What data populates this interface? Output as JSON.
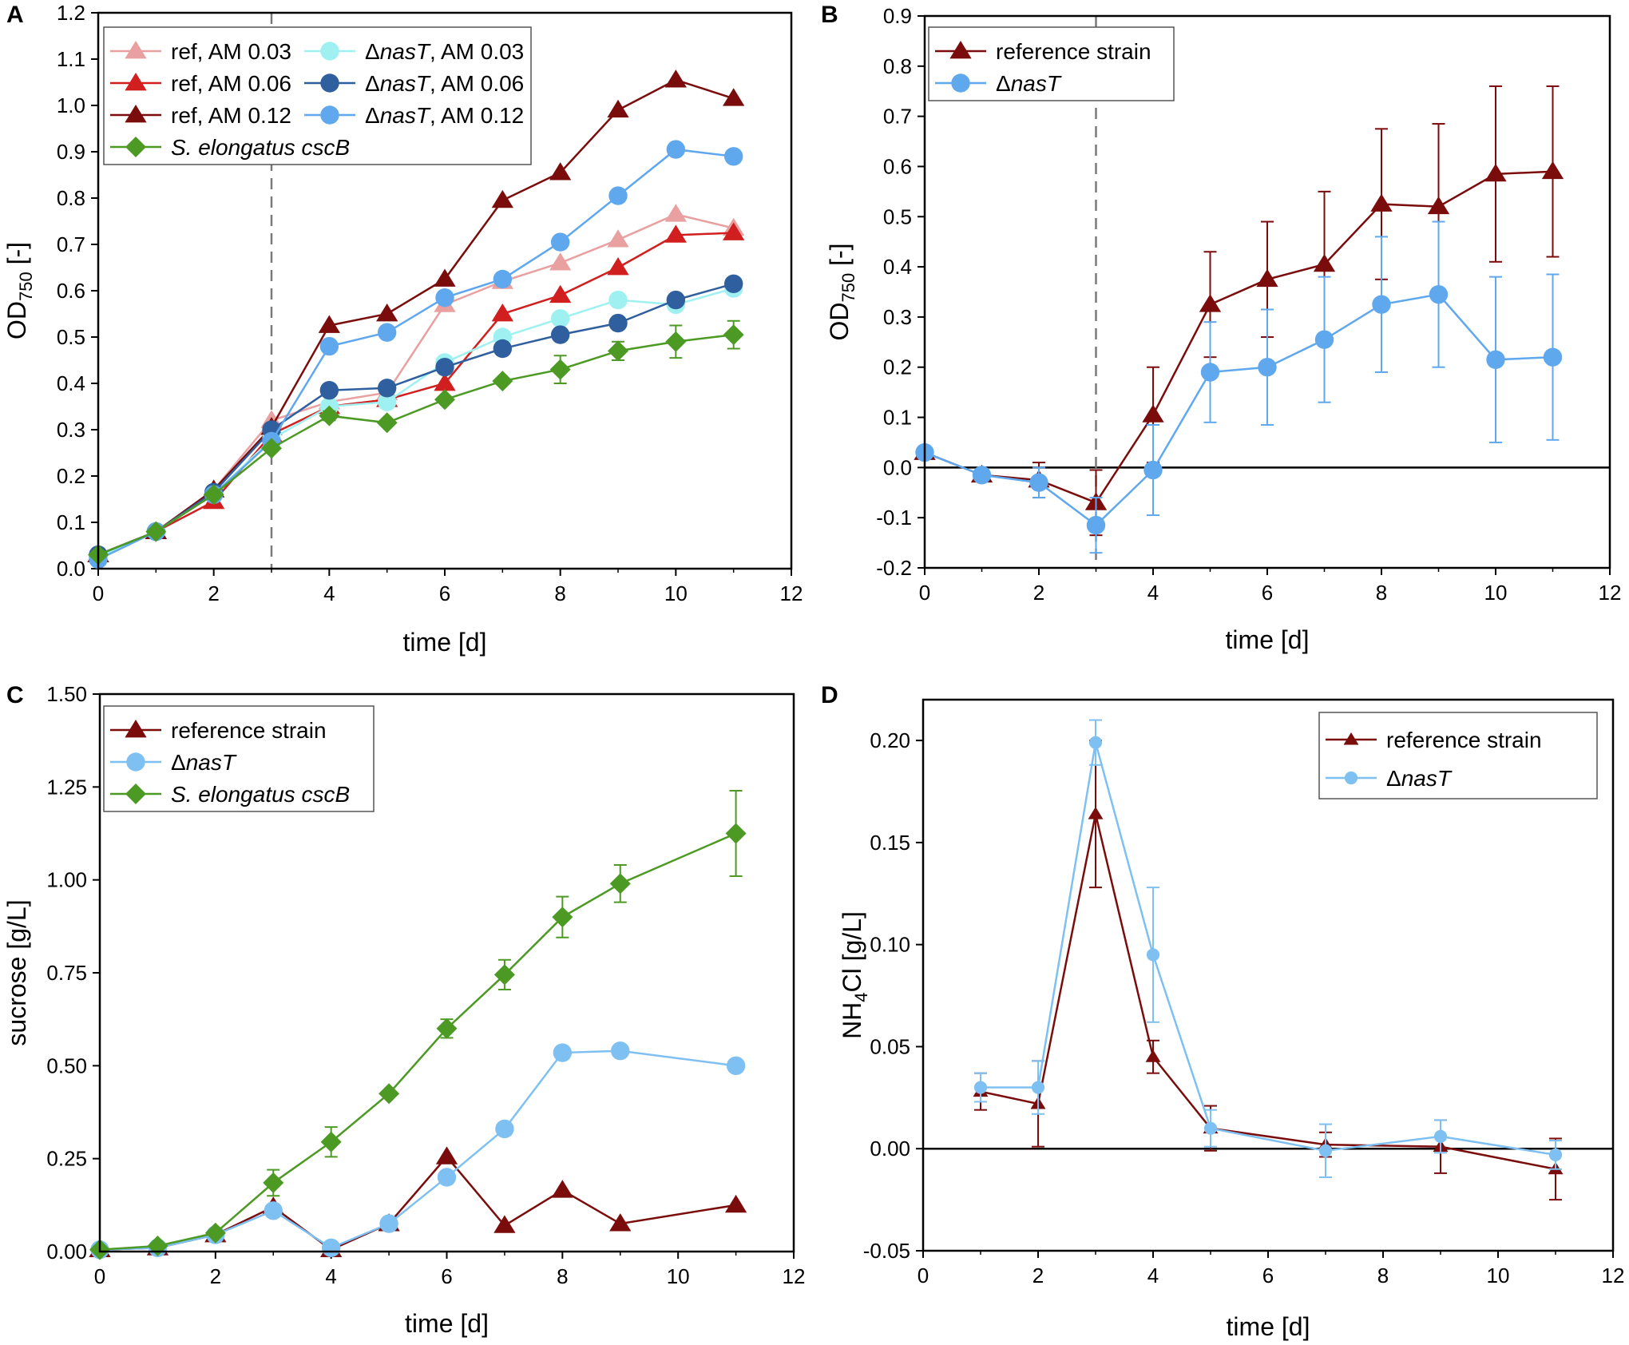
{
  "chart_data": [
    {
      "panel": "A",
      "type": "line",
      "xlabel": "time [d]",
      "ylabel": {
        "main": "OD",
        "sub": "750",
        "rest": " [-]"
      },
      "xlim": [
        0,
        12
      ],
      "ylim": [
        0,
        1.2
      ],
      "xticks": [
        "0",
        "2",
        "4",
        "6",
        "8",
        "10",
        "12"
      ],
      "yticks": [
        "0.0",
        "0.1",
        "0.2",
        "0.3",
        "0.4",
        "0.5",
        "0.6",
        "0.7",
        "0.8",
        "0.9",
        "1.0",
        "1.1",
        "1.2"
      ],
      "vline_x": 3,
      "legend_position": "top-left",
      "series": [
        {
          "name": "ref, AM 0.03",
          "color": "#e8a0a0",
          "marker": "triangle",
          "x": [
            0,
            1,
            2,
            3,
            4,
            5,
            6,
            7,
            8,
            9,
            10,
            11
          ],
          "y": [
            0.03,
            0.08,
            0.17,
            0.32,
            0.36,
            0.38,
            0.57,
            0.62,
            0.66,
            0.71,
            0.765,
            0.735
          ]
        },
        {
          "name": "ref, AM 0.06",
          "color": "#d11f1f",
          "marker": "triangle",
          "x": [
            0,
            1,
            2,
            3,
            4,
            5,
            6,
            7,
            8,
            9,
            10,
            11
          ],
          "y": [
            0.03,
            0.08,
            0.145,
            0.29,
            0.35,
            0.365,
            0.4,
            0.55,
            0.59,
            0.65,
            0.72,
            0.725
          ]
        },
        {
          "name": "ref, AM 0.12",
          "color": "#7a0c0c",
          "marker": "triangle",
          "x": [
            0,
            1,
            2,
            3,
            4,
            5,
            6,
            7,
            8,
            9,
            10,
            11
          ],
          "y": [
            0.03,
            0.08,
            0.17,
            0.305,
            0.525,
            0.55,
            0.625,
            0.795,
            0.855,
            0.99,
            1.055,
            1.015
          ]
        },
        {
          "name": "ΔnasT, AM 0.03",
          "italic": "nasT",
          "color": "#9ff1f1",
          "marker": "circle",
          "x": [
            0,
            1,
            2,
            3,
            4,
            5,
            6,
            7,
            8,
            9,
            10,
            11
          ],
          "y": [
            0.025,
            0.08,
            0.16,
            0.28,
            0.35,
            0.36,
            0.445,
            0.5,
            0.54,
            0.58,
            0.57,
            0.605
          ]
        },
        {
          "name": "ΔnasT, AM 0.06",
          "italic": "nasT",
          "color": "#2f5f9e",
          "marker": "circle",
          "x": [
            0,
            1,
            2,
            3,
            4,
            5,
            6,
            7,
            8,
            9,
            10,
            11
          ],
          "y": [
            0.03,
            0.08,
            0.165,
            0.3,
            0.385,
            0.39,
            0.435,
            0.475,
            0.505,
            0.53,
            0.58,
            0.615
          ]
        },
        {
          "name": "ΔnasT, AM 0.12",
          "italic": "nasT",
          "color": "#5fa8ee",
          "marker": "circle",
          "x": [
            0,
            1,
            2,
            3,
            4,
            5,
            6,
            7,
            8,
            9,
            10,
            11
          ],
          "y": [
            0.02,
            0.08,
            0.16,
            0.275,
            0.48,
            0.51,
            0.585,
            0.625,
            0.705,
            0.805,
            0.905,
            0.89
          ]
        },
        {
          "name": "S. elongatus cscB",
          "italic_all": true,
          "color": "#4c9a24",
          "marker": "diamond",
          "x": [
            0,
            1,
            2,
            3,
            4,
            5,
            6,
            7,
            8,
            9,
            10,
            11
          ],
          "y": [
            0.03,
            0.08,
            0.16,
            0.26,
            0.33,
            0.315,
            0.365,
            0.405,
            0.43,
            0.47,
            0.49,
            0.505
          ],
          "err": [
            0,
            0,
            0,
            0,
            0.01,
            0,
            0,
            0,
            0.03,
            0.02,
            0.035,
            0.03
          ]
        }
      ]
    },
    {
      "panel": "B",
      "type": "line",
      "xlabel": "time [d]",
      "ylabel": {
        "main": "OD",
        "sub": "750",
        "rest": " [-]"
      },
      "xlim": [
        0,
        12
      ],
      "ylim": [
        -0.2,
        0.9
      ],
      "xticks": [
        "0",
        "2",
        "4",
        "6",
        "8",
        "10",
        "12"
      ],
      "yticks": [
        "-0.2",
        "-0.1",
        "0.0",
        "0.1",
        "0.2",
        "0.3",
        "0.4",
        "0.5",
        "0.6",
        "0.7",
        "0.8",
        "0.9"
      ],
      "vline_x": 3,
      "hline_y": 0,
      "legend_position": "top-left",
      "series": [
        {
          "name": "reference strain",
          "color": "#7a0c0c",
          "marker": "triangle",
          "x": [
            0,
            1,
            2,
            3,
            4,
            5,
            6,
            7,
            8,
            9,
            10,
            11
          ],
          "y": [
            0.03,
            -0.015,
            -0.025,
            -0.07,
            0.105,
            0.325,
            0.375,
            0.405,
            0.525,
            0.52,
            0.585,
            0.59
          ],
          "err": [
            0,
            0.005,
            0.035,
            0.065,
            0.095,
            0.105,
            0.115,
            0.145,
            0.15,
            0.165,
            0.175,
            0.17
          ]
        },
        {
          "name": "ΔnasT",
          "italic": "nasT",
          "color": "#5fa8ee",
          "marker": "circle",
          "x": [
            0,
            1,
            2,
            3,
            4,
            5,
            6,
            7,
            8,
            9,
            10,
            11
          ],
          "y": [
            0.03,
            -0.015,
            -0.03,
            -0.115,
            -0.005,
            0.19,
            0.2,
            0.255,
            0.325,
            0.345,
            0.215,
            0.22
          ],
          "err": [
            0,
            0.005,
            0.03,
            0.055,
            0.09,
            0.1,
            0.115,
            0.125,
            0.135,
            0.145,
            0.165,
            0.165
          ]
        }
      ]
    },
    {
      "panel": "C",
      "type": "line",
      "xlabel": "time [d]",
      "ylabel": {
        "main": "sucrose [g/L]"
      },
      "xlim": [
        0,
        12
      ],
      "ylim": [
        0,
        1.5
      ],
      "xticks": [
        "0",
        "2",
        "4",
        "6",
        "8",
        "10",
        "12"
      ],
      "yticks": [
        "0.00",
        "0.25",
        "0.50",
        "0.75",
        "1.00",
        "1.25",
        "1.50"
      ],
      "legend_position": "top-left",
      "series": [
        {
          "name": "reference strain",
          "color": "#7a0c0c",
          "marker": "triangle",
          "x": [
            0,
            1,
            2,
            3,
            4,
            5,
            6,
            7,
            8,
            9,
            11
          ],
          "y": [
            0.005,
            0.01,
            0.045,
            0.12,
            0.005,
            0.075,
            0.255,
            0.07,
            0.165,
            0.075,
            0.125
          ]
        },
        {
          "name": "ΔnasT",
          "italic": "nasT",
          "color": "#7ec0f2",
          "marker": "circle",
          "x": [
            0,
            1,
            2,
            3,
            4,
            5,
            6,
            7,
            8,
            9,
            11
          ],
          "y": [
            0.005,
            0.01,
            0.045,
            0.11,
            0.01,
            0.075,
            0.2,
            0.33,
            0.535,
            0.54,
            0.5
          ]
        },
        {
          "name": "S. elongatus cscB",
          "italic_all": true,
          "color": "#4c9a24",
          "marker": "diamond",
          "x": [
            0,
            1,
            2,
            3,
            4,
            5,
            6,
            7,
            8,
            9,
            11
          ],
          "y": [
            0.005,
            0.015,
            0.05,
            0.185,
            0.295,
            0.425,
            0.6,
            0.745,
            0.9,
            0.99,
            1.125
          ],
          "err": [
            0,
            0,
            0,
            0.035,
            0.04,
            0,
            0.025,
            0.04,
            0.055,
            0.05,
            0.115
          ]
        }
      ]
    },
    {
      "panel": "D",
      "type": "line",
      "xlabel": "time [d]",
      "ylabel": {
        "main": "NH",
        "sub": "4",
        "rest": "Cl [g/L]"
      },
      "xlim": [
        0,
        12
      ],
      "ylim": [
        -0.05,
        0.22
      ],
      "xticks": [
        "0",
        "2",
        "4",
        "6",
        "8",
        "10",
        "12"
      ],
      "yticks": [
        "-0.05",
        "0.00",
        "0.05",
        "0.10",
        "0.15",
        "0.20"
      ],
      "ytick_values": [
        -0.05,
        0,
        0.05,
        0.1,
        0.15,
        0.2
      ],
      "hline_y": 0,
      "legend_position": "top-right",
      "series": [
        {
          "name": "reference strain",
          "color": "#7a0c0c",
          "marker": "triangle",
          "x": [
            1,
            2,
            3,
            4,
            5,
            7,
            9,
            11
          ],
          "y": [
            0.028,
            0.022,
            0.164,
            0.045,
            0.01,
            0.002,
            0.001,
            -0.01
          ],
          "err": [
            0.009,
            0.021,
            0.036,
            0.008,
            0.011,
            0.006,
            0.013,
            0.015
          ]
        },
        {
          "name": "ΔnasT",
          "italic": "nasT",
          "color": "#7ec0f2",
          "marker": "circle",
          "x": [
            1,
            2,
            3,
            4,
            5,
            7,
            9,
            11
          ],
          "y": [
            0.03,
            0.03,
            0.199,
            0.095,
            0.01,
            -0.001,
            0.006,
            -0.003
          ],
          "err": [
            0.007,
            0.013,
            0.011,
            0.033,
            0.009,
            0.013,
            0.008,
            0.007
          ]
        }
      ]
    }
  ]
}
